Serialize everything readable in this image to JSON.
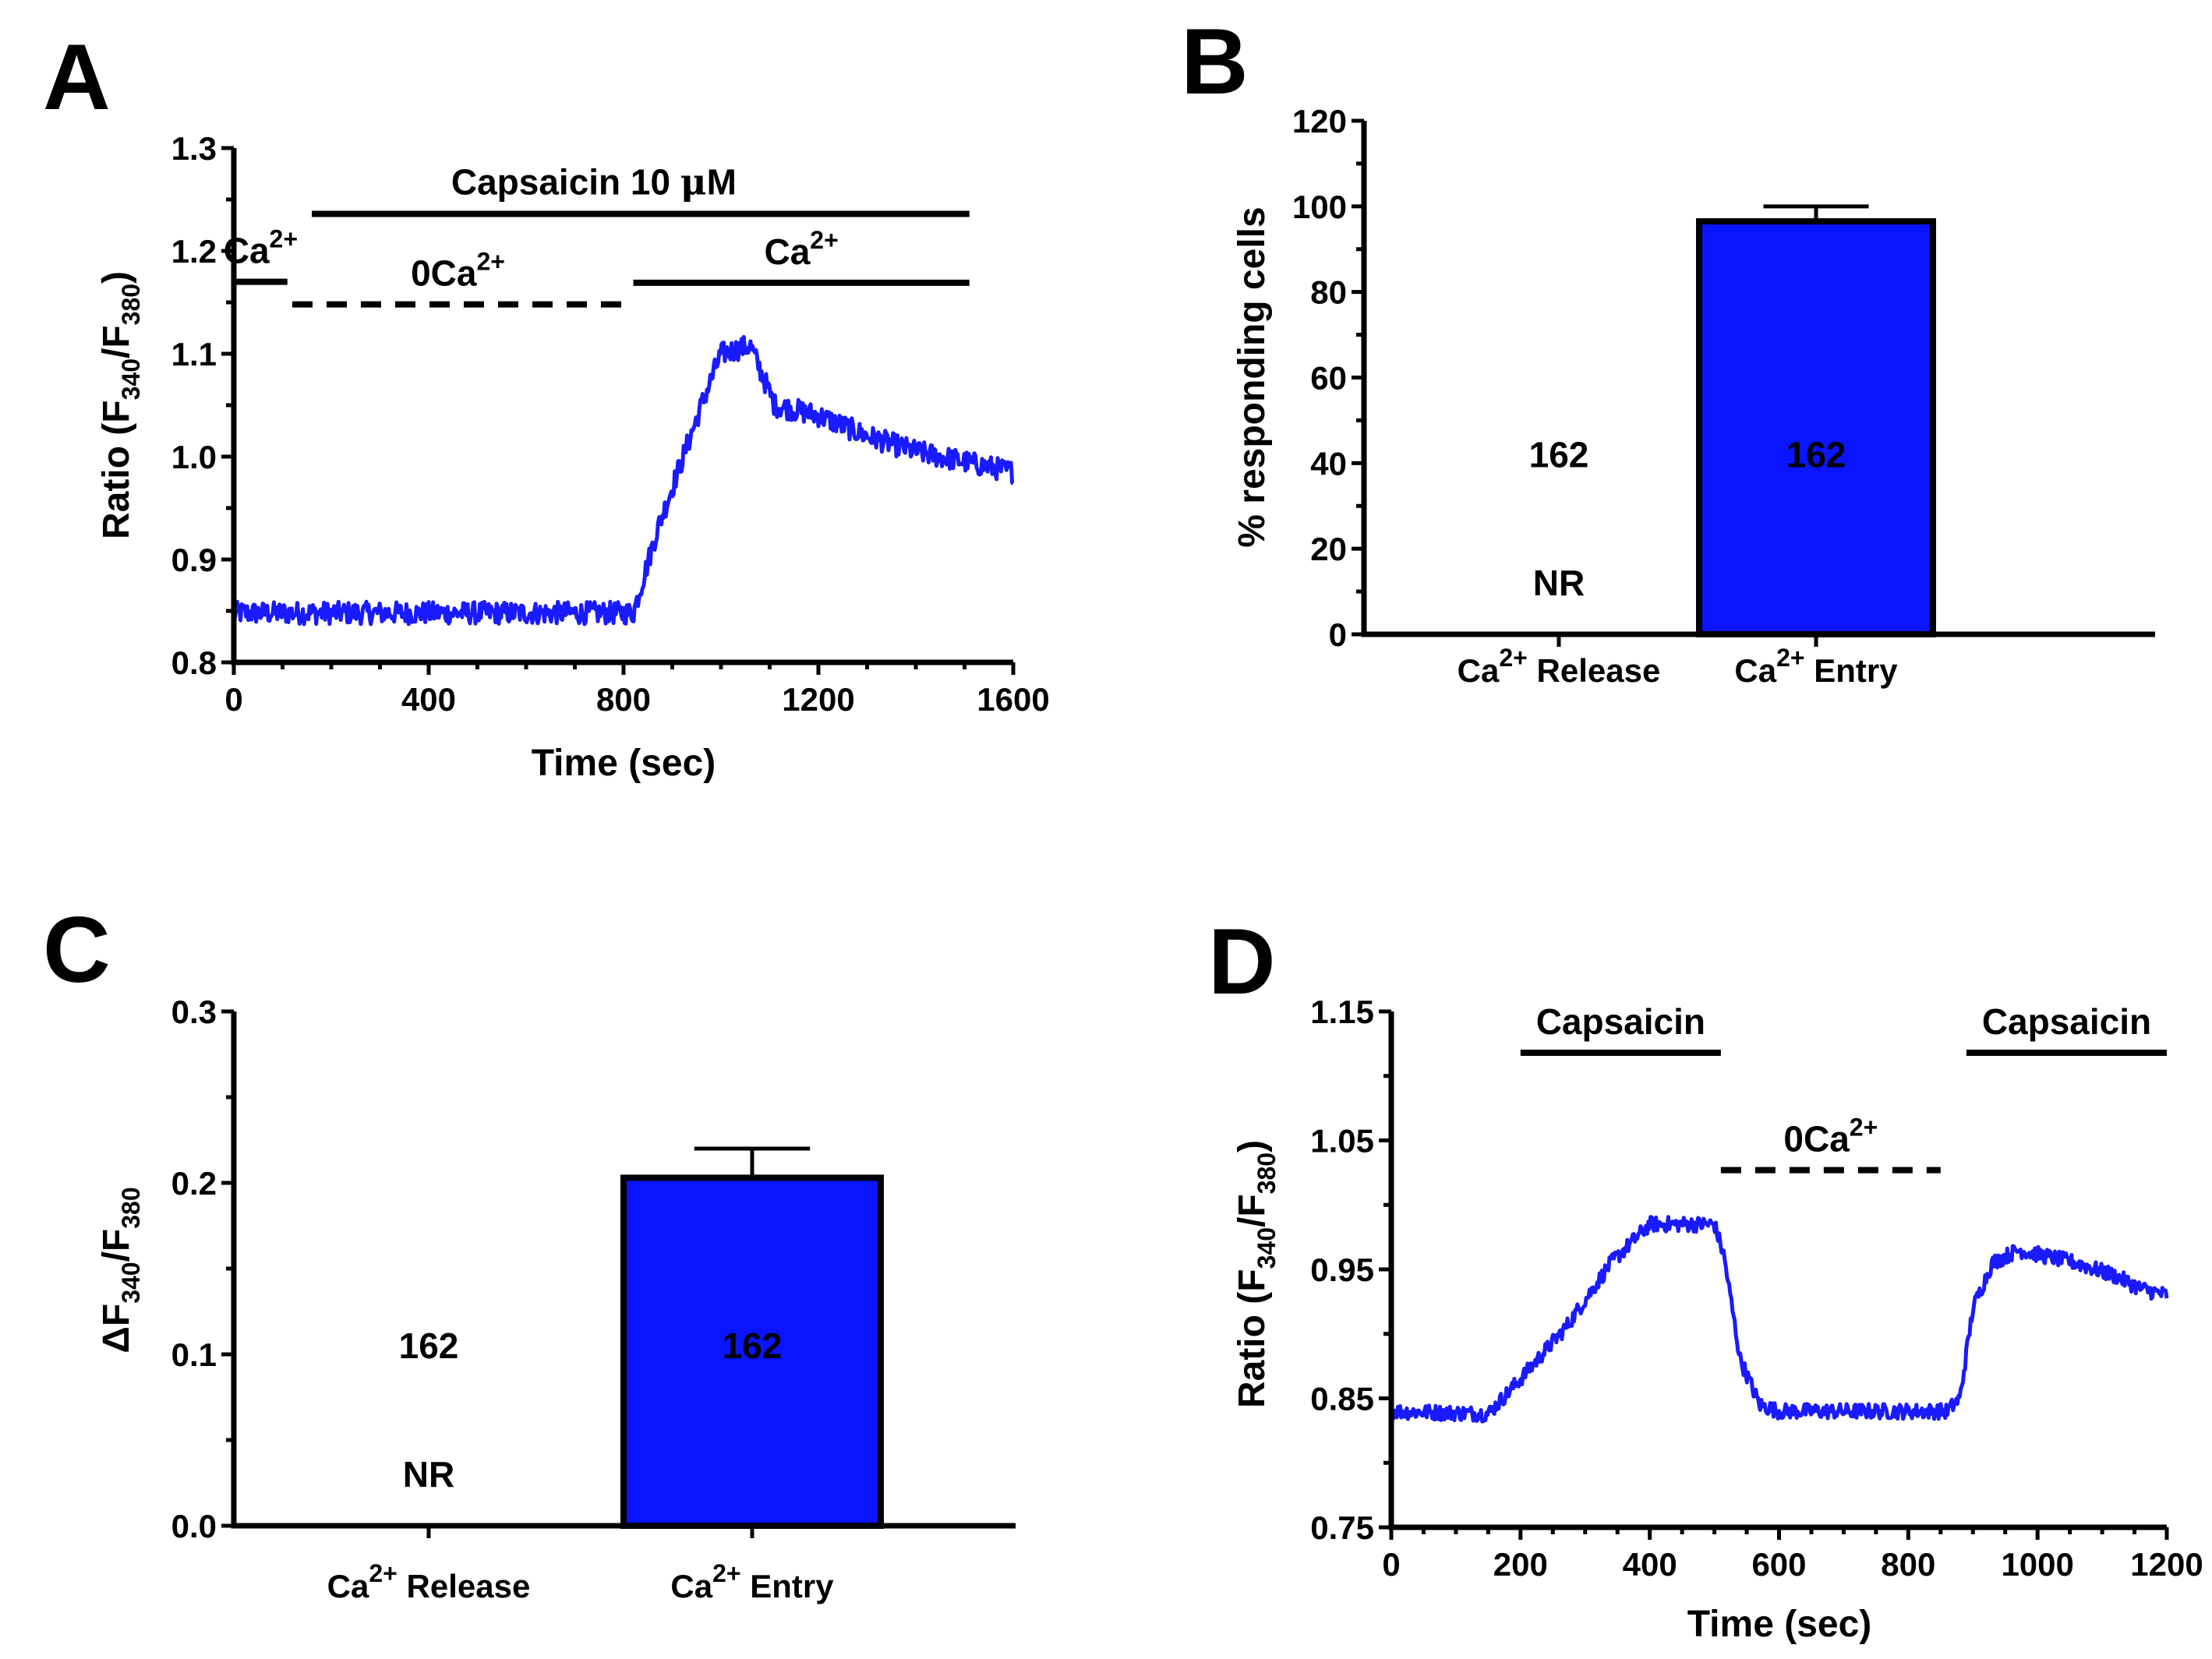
{
  "colors": {
    "trace": "#1a1aff",
    "bar_fill": "#0a14ff",
    "axes": "#000000"
  },
  "chart_data": [
    {
      "panel": "A",
      "type": "line",
      "xlabel": "Time (sec)",
      "ylabel_main": "Ratio (F",
      "ylabel_sub1": "340",
      "ylabel_mid": "/F",
      "ylabel_sub2": "380",
      "ylabel_end": ")",
      "xlim": [
        0,
        1600
      ],
      "ylim": [
        0.8,
        1.3
      ],
      "xticks": [
        0,
        400,
        800,
        1200,
        1600
      ],
      "xtick_labels": [
        "0",
        "400",
        "800",
        "1200",
        "1600"
      ],
      "yticks": [
        0.8,
        0.9,
        1.0,
        1.1,
        1.2,
        1.3
      ],
      "ytick_labels": [
        "0.8",
        "0.9",
        "1.0",
        "1.1",
        "1.2",
        "1.3"
      ],
      "series": [
        {
          "name": "Ratio",
          "keypoints": [
            [
              0,
              0.848
            ],
            [
              820,
              0.848
            ],
            [
              870,
              0.93
            ],
            [
              960,
              1.05
            ],
            [
              1000,
              1.1
            ],
            [
              1060,
              1.108
            ],
            [
              1110,
              1.05
            ],
            [
              1200,
              1.04
            ],
            [
              1300,
              1.02
            ],
            [
              1400,
              1.005
            ],
            [
              1500,
              0.995
            ],
            [
              1600,
              0.985
            ]
          ],
          "noise": 0.011
        }
      ],
      "annotations": [
        {
          "text": "Capsaicin 10 ",
          "symbol": "μ",
          "unit": "M",
          "x_start": 160,
          "x_end": 1510,
          "y": 1.236,
          "style": "solid"
        },
        {
          "text": "Ca",
          "sup": "2+",
          "x_start": 0,
          "x_end": 110,
          "y": 1.17,
          "style": "solid"
        },
        {
          "text": "0Ca",
          "sup": "2+",
          "x_start": 120,
          "x_end": 800,
          "y": 1.148,
          "style": "dashed"
        },
        {
          "text": "Ca",
          "sup": "2+",
          "x_start": 820,
          "x_end": 1510,
          "y": 1.169,
          "style": "solid"
        }
      ]
    },
    {
      "panel": "B",
      "type": "bar",
      "ylabel": "% responding cells",
      "ylim": [
        0,
        120
      ],
      "yticks": [
        0,
        20,
        40,
        60,
        80,
        100,
        120
      ],
      "ytick_labels": [
        "0",
        "20",
        "40",
        "60",
        "80",
        "100",
        "120"
      ],
      "categories": [
        {
          "name": "Ca",
          "sup": "2+",
          "rest": " Release",
          "value": 0,
          "error": 0,
          "n_label": "162",
          "response_label": "NR"
        },
        {
          "name": "Ca",
          "sup": "2+",
          "rest": " Entry",
          "value": 96.5,
          "error": 3.5,
          "n_label": "162",
          "response_label": ""
        }
      ]
    },
    {
      "panel": "C",
      "type": "bar",
      "ylabel_main": "ΔF",
      "ylabel_sub1": "340",
      "ylabel_mid": "/F",
      "ylabel_sub2": "380",
      "ylim": [
        0,
        0.3
      ],
      "yticks": [
        0.0,
        0.1,
        0.2,
        0.3
      ],
      "ytick_labels": [
        "0.0",
        "0.1",
        "0.2",
        "0.3"
      ],
      "categories": [
        {
          "name": "Ca",
          "sup": "2+",
          "rest": " Release",
          "value": 0,
          "error": 0,
          "n_label": "162",
          "response_label": "NR"
        },
        {
          "name": "Ca",
          "sup": "2+",
          "rest": " Entry",
          "value": 0.203,
          "error": 0.017,
          "n_label": "162",
          "response_label": ""
        }
      ]
    },
    {
      "panel": "D",
      "type": "line",
      "xlabel": "Time (sec)",
      "ylabel_main": "Ratio (F",
      "ylabel_sub1": "340",
      "ylabel_mid": "/F",
      "ylabel_sub2": "380",
      "ylabel_end": ")",
      "xlim": [
        0,
        1200
      ],
      "ylim": [
        0.75,
        1.15
      ],
      "xticks": [
        0,
        200,
        400,
        600,
        800,
        1000,
        1200
      ],
      "xtick_labels": [
        "0",
        "200",
        "400",
        "600",
        "800",
        "1000",
        "1200"
      ],
      "yticks": [
        0.75,
        0.85,
        0.95,
        1.05,
        1.15
      ],
      "ytick_labels": [
        "0.75",
        "0.85",
        "0.95",
        "1.05",
        "1.15"
      ],
      "series": [
        {
          "name": "Ratio",
          "keypoints": [
            [
              0,
              0.84
            ],
            [
              150,
              0.838
            ],
            [
              200,
              0.865
            ],
            [
              270,
              0.905
            ],
            [
              340,
              0.955
            ],
            [
              400,
              0.985
            ],
            [
              500,
              0.985
            ],
            [
              515,
              0.96
            ],
            [
              540,
              0.88
            ],
            [
              570,
              0.845
            ],
            [
              600,
              0.84
            ],
            [
              860,
              0.84
            ],
            [
              880,
              0.85
            ],
            [
              900,
              0.92
            ],
            [
              930,
              0.955
            ],
            [
              970,
              0.965
            ],
            [
              1060,
              0.955
            ],
            [
              1120,
              0.945
            ],
            [
              1160,
              0.935
            ],
            [
              1200,
              0.93
            ]
          ],
          "noise": 0.006
        }
      ],
      "annotations": [
        {
          "text": "Capsaicin",
          "sup": "",
          "x_start": 200,
          "x_end": 510,
          "y": 1.118,
          "style": "solid"
        },
        {
          "text": "0Ca",
          "sup": "2+",
          "x_start": 510,
          "x_end": 850,
          "y": 1.027,
          "style": "dashed"
        },
        {
          "text": "Capsaicin",
          "sup": "",
          "x_start": 890,
          "x_end": 1200,
          "y": 1.118,
          "style": "solid"
        }
      ]
    }
  ]
}
